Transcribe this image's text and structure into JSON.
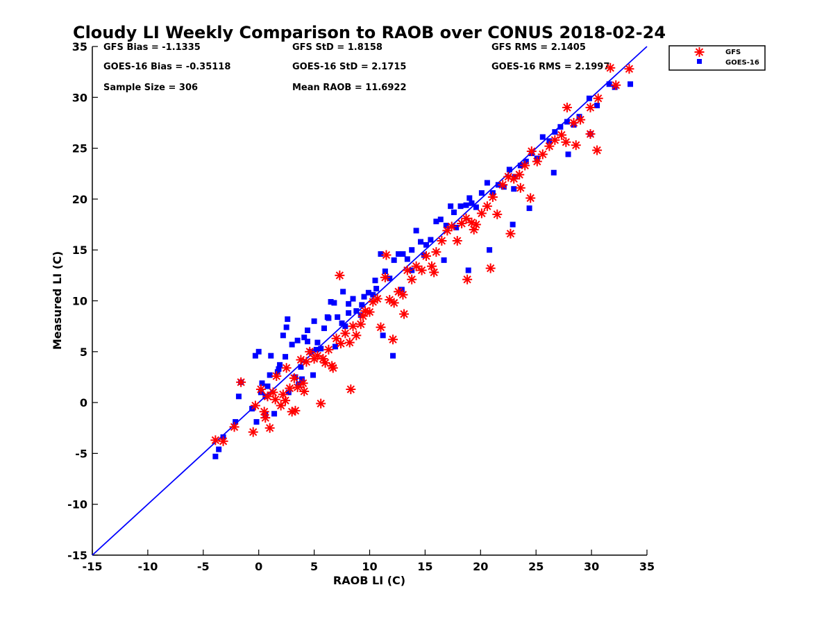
{
  "chart_data": {
    "type": "scatter",
    "title": "Cloudy LI Weekly Comparison to RAOB over CONUS 2018-02-24",
    "xlabel": "RAOB LI (C)",
    "ylabel": "Measured LI (C)",
    "xlim": [
      -15,
      35
    ],
    "ylim": [
      -15,
      35
    ],
    "xticks": [
      -15,
      -10,
      -5,
      0,
      5,
      10,
      15,
      20,
      25,
      30,
      35
    ],
    "yticks": [
      -15,
      -10,
      -5,
      0,
      5,
      10,
      15,
      20,
      25,
      30,
      35
    ],
    "grid": false,
    "legend_position": "outside top-right",
    "reference_line": {
      "x": [
        -15,
        35
      ],
      "y": [
        -15,
        35
      ],
      "color": "#0000ff"
    },
    "stats": {
      "gfs_bias": "GFS Bias = -1.1335",
      "goes_bias": "GOES-16 Bias = -0.35118",
      "sample_size": "Sample Size = 306",
      "gfs_std": "GFS StD = 1.8158",
      "goes_std": "GOES-16 StD = 2.1715",
      "mean_raob": "Mean RAOB = 11.6922",
      "gfs_rms": "GFS RMS = 2.1405",
      "goes_rms": "GOES-16 RMS = 2.1997"
    },
    "series": [
      {
        "name": "GFS",
        "color": "#ff0000",
        "marker": "asterisk",
        "x": [
          -3.9,
          -3.2,
          -2.2,
          -1.6,
          -0.5,
          -0.3,
          0.2,
          0.5,
          0.8,
          1.0,
          1.3,
          1.6,
          2.0,
          2.2,
          2.5,
          2.8,
          3.0,
          3.2,
          3.5,
          3.8,
          4.0,
          4.3,
          4.6,
          5.0,
          5.3,
          5.6,
          6.0,
          6.3,
          6.7,
          7.0,
          7.4,
          7.8,
          8.2,
          8.5,
          8.8,
          9.2,
          9.6,
          10.0,
          10.3,
          10.7,
          11.0,
          11.4,
          11.8,
          12.2,
          12.6,
          13.0,
          13.4,
          13.8,
          14.2,
          14.7,
          15.1,
          15.6,
          16.0,
          16.5,
          17.0,
          17.4,
          17.9,
          18.3,
          18.7,
          19.2,
          19.6,
          20.1,
          20.6,
          21.1,
          21.5,
          22.0,
          22.5,
          23.0,
          23.5,
          24.0,
          24.6,
          25.1,
          25.6,
          26.2,
          26.7,
          27.3,
          27.8,
          28.4,
          29.0,
          29.9,
          30.6,
          31.7,
          32.2,
          33.4,
          1.5,
          3.3,
          5.8,
          7.3,
          8.3,
          12.1,
          13.1,
          18.8,
          20.9,
          22.7,
          24.5,
          27.7,
          29.9,
          0.6,
          2.4,
          4.1,
          6.6,
          9.4,
          11.5,
          15.8,
          19.4,
          23.6,
          28.6,
          30.5
        ],
        "y": [
          -3.7,
          -3.8,
          -2.4,
          2.0,
          -2.9,
          -0.3,
          1.3,
          -0.9,
          0.6,
          -2.5,
          1.0,
          2.6,
          -0.3,
          0.8,
          3.4,
          1.4,
          -0.9,
          2.4,
          1.5,
          4.2,
          1.9,
          4.0,
          5.0,
          4.3,
          4.6,
          -0.1,
          3.9,
          5.2,
          3.4,
          6.3,
          5.8,
          6.8,
          5.9,
          7.5,
          6.6,
          7.7,
          9.0,
          8.9,
          9.9,
          10.2,
          7.4,
          12.3,
          10.1,
          9.8,
          10.9,
          10.6,
          13.0,
          12.1,
          13.4,
          13.0,
          14.4,
          13.4,
          14.8,
          15.9,
          16.9,
          17.3,
          15.9,
          17.6,
          18.1,
          17.7,
          17.5,
          18.6,
          19.3,
          20.2,
          18.5,
          21.4,
          22.2,
          22.0,
          22.4,
          23.3,
          24.7,
          23.7,
          24.4,
          25.2,
          25.8,
          26.3,
          29.0,
          27.5,
          27.8,
          29.0,
          29.9,
          32.9,
          31.2,
          32.8,
          0.3,
          -0.8,
          4.3,
          12.5,
          1.3,
          6.2,
          8.7,
          12.1,
          13.2,
          16.6,
          20.1,
          25.6,
          26.4,
          -1.5,
          0.2,
          1.1,
          3.6,
          8.5,
          14.5,
          12.8,
          17.0,
          21.1,
          25.3,
          24.8
        ]
      },
      {
        "name": "GOES-16",
        "color": "#0000ff",
        "marker": "square",
        "x": [
          -3.9,
          -3.6,
          -3.2,
          -2.1,
          -1.8,
          -1.6,
          -0.6,
          -0.2,
          0.0,
          0.3,
          0.6,
          0.8,
          1.1,
          1.4,
          1.7,
          1.9,
          2.2,
          2.5,
          2.7,
          3.0,
          3.3,
          3.5,
          3.8,
          4.1,
          4.4,
          4.7,
          5.0,
          5.3,
          5.6,
          5.9,
          6.2,
          6.5,
          6.8,
          7.1,
          7.5,
          7.8,
          8.1,
          8.5,
          8.8,
          9.2,
          9.5,
          9.9,
          10.3,
          10.6,
          11.0,
          11.4,
          11.8,
          12.2,
          12.6,
          13.0,
          13.4,
          13.8,
          14.2,
          14.6,
          15.1,
          15.5,
          16.0,
          16.4,
          16.9,
          17.3,
          17.8,
          18.2,
          18.7,
          19.2,
          19.6,
          20.1,
          20.6,
          21.1,
          21.6,
          22.1,
          22.6,
          23.1,
          23.6,
          24.1,
          24.6,
          25.1,
          25.6,
          26.2,
          26.7,
          27.2,
          27.8,
          28.4,
          28.9,
          29.8,
          30.5,
          31.6,
          32.1,
          33.5,
          -0.3,
          1.0,
          2.6,
          4.4,
          6.3,
          7.6,
          11.2,
          12.1,
          13.8,
          16.7,
          18.9,
          20.8,
          22.9,
          24.4,
          26.6,
          29.9,
          0.6,
          2.4,
          3.9,
          5.2,
          8.1,
          10.5,
          14.9,
          19.0,
          23.0,
          27.9,
          0.2,
          1.8,
          3.6,
          4.9,
          6.9,
          9.3,
          12.9,
          17.6
        ],
        "y": [
          -5.3,
          -4.6,
          -3.4,
          -1.9,
          0.6,
          2.0,
          -0.6,
          -1.9,
          5.0,
          1.9,
          -1.2,
          1.6,
          4.6,
          -1.1,
          3.0,
          3.7,
          6.6,
          7.4,
          1.0,
          5.7,
          2.5,
          6.1,
          3.5,
          6.4,
          7.1,
          5.0,
          8.0,
          5.9,
          5.3,
          7.3,
          8.4,
          9.9,
          9.8,
          8.4,
          7.8,
          7.5,
          8.8,
          10.2,
          9.0,
          8.6,
          10.4,
          10.8,
          10.6,
          11.2,
          14.6,
          12.9,
          12.2,
          14.0,
          14.6,
          14.6,
          14.1,
          15.0,
          16.9,
          15.8,
          15.5,
          16.0,
          17.8,
          18.0,
          17.4,
          19.3,
          17.2,
          19.3,
          19.4,
          19.6,
          19.2,
          20.6,
          21.6,
          20.6,
          21.4,
          21.2,
          22.9,
          22.2,
          23.3,
          23.7,
          24.5,
          24.0,
          26.1,
          25.7,
          26.6,
          27.1,
          27.6,
          27.3,
          28.1,
          29.9,
          29.2,
          31.3,
          31.0,
          31.3,
          4.6,
          2.7,
          8.2,
          6.0,
          8.3,
          10.9,
          6.6,
          4.6,
          13.0,
          14.0,
          13.0,
          15.0,
          17.5,
          19.1,
          22.6,
          26.4,
          0.6,
          4.5,
          2.3,
          5.2,
          9.7,
          12.0,
          14.5,
          20.1,
          21.0,
          24.4,
          1.0,
          3.3,
          1.8,
          2.7,
          5.5,
          9.6,
          11.1,
          18.7
        ]
      }
    ]
  }
}
